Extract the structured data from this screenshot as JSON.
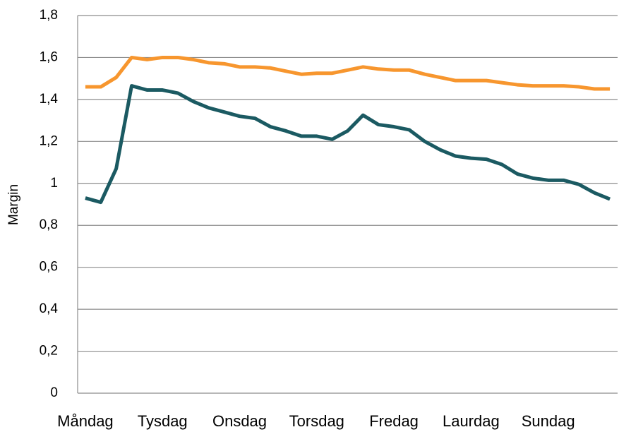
{
  "chart_data": {
    "type": "line",
    "y_label": "Margin",
    "categories": [
      "Måndag",
      null,
      null,
      null,
      null,
      "Tysdag",
      null,
      null,
      null,
      null,
      "Onsdag",
      null,
      null,
      null,
      null,
      "Torsdag",
      null,
      null,
      null,
      null,
      "Fredag",
      null,
      null,
      null,
      null,
      "Laurdag",
      null,
      null,
      null,
      null,
      "Sundag",
      null,
      null,
      null,
      null
    ],
    "series": [
      {
        "color": "#f7962e",
        "values": [
          1.46,
          1.46,
          1.505,
          1.6,
          1.59,
          1.6,
          1.6,
          1.59,
          1.575,
          1.57,
          1.555,
          1.555,
          1.55,
          1.535,
          1.52,
          1.525,
          1.525,
          1.54,
          1.555,
          1.545,
          1.54,
          1.54,
          1.52,
          1.505,
          1.49,
          1.49,
          1.49,
          1.48,
          1.47,
          1.465,
          1.465,
          1.465,
          1.46,
          1.45,
          1.45
        ]
      },
      {
        "color": "#1b5a62",
        "values": [
          0.93,
          0.91,
          1.07,
          1.465,
          1.445,
          1.445,
          1.43,
          1.39,
          1.36,
          1.34,
          1.32,
          1.31,
          1.27,
          1.25,
          1.225,
          1.225,
          1.21,
          1.25,
          1.325,
          1.28,
          1.27,
          1.255,
          1.2,
          1.16,
          1.13,
          1.12,
          1.115,
          1.09,
          1.045,
          1.025,
          1.015,
          1.015,
          0.995,
          0.955,
          0.925
        ]
      }
    ],
    "ylim": [
      0,
      1.8
    ],
    "yticks": [
      0,
      {
        "value": 0.2,
        "label": "0,2"
      },
      {
        "value": 0.4,
        "label": "0,4"
      },
      {
        "value": 0.6,
        "label": "0,6"
      },
      {
        "value": 0.8,
        "label": "0,8"
      },
      1,
      {
        "value": 1.2,
        "label": "1,2"
      },
      {
        "value": 1.4,
        "label": "1,4"
      },
      {
        "value": 1.6,
        "label": "1,6"
      },
      {
        "value": 1.8,
        "label": "1,8"
      }
    ],
    "grid": true
  }
}
